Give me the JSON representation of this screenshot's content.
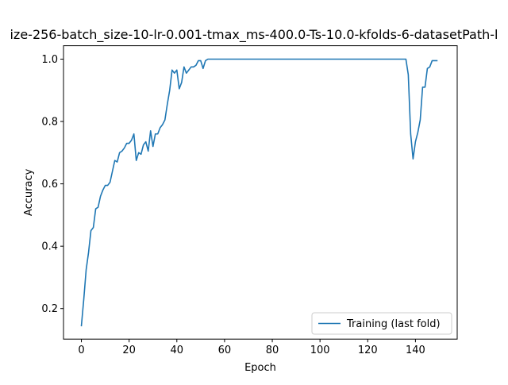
{
  "chart_data": {
    "type": "line",
    "title": "ize-256-batch_size-10-lr-0.001-tmax_ms-400.0-Ts-10.0-kfolds-6-datasetPath-l",
    "xlabel": "Epoch",
    "ylabel": "Accuracy",
    "xlim": [
      -7.5,
      157.5
    ],
    "ylim": [
      0.102,
      1.043
    ],
    "xticks": [
      0,
      20,
      40,
      60,
      80,
      100,
      120,
      140
    ],
    "yticks": [
      0.2,
      0.4,
      0.6,
      0.8,
      1.0
    ],
    "xtick_labels": [
      "0",
      "20",
      "40",
      "60",
      "80",
      "100",
      "120",
      "140"
    ],
    "ytick_labels": [
      "0.2",
      "0.4",
      "0.6",
      "0.8",
      "1.0"
    ],
    "grid": false,
    "legend_position": "lower-right",
    "series": [
      {
        "name": "Training (last fold)",
        "color": "#1f77b4",
        "x": [
          0,
          1,
          2,
          3,
          4,
          5,
          6,
          7,
          8,
          9,
          10,
          11,
          12,
          13,
          14,
          15,
          16,
          17,
          18,
          19,
          20,
          21,
          22,
          23,
          24,
          25,
          26,
          27,
          28,
          29,
          30,
          31,
          32,
          33,
          34,
          35,
          36,
          37,
          38,
          39,
          40,
          41,
          42,
          43,
          44,
          45,
          46,
          47,
          48,
          49,
          50,
          51,
          52,
          53,
          54,
          136,
          137,
          138,
          139,
          140,
          141,
          142,
          143,
          144,
          145,
          146,
          147,
          148,
          149
        ],
        "y": [
          0.145,
          0.23,
          0.325,
          0.38,
          0.45,
          0.46,
          0.52,
          0.525,
          0.56,
          0.58,
          0.595,
          0.595,
          0.605,
          0.64,
          0.675,
          0.67,
          0.7,
          0.705,
          0.715,
          0.73,
          0.73,
          0.74,
          0.76,
          0.675,
          0.7,
          0.695,
          0.725,
          0.735,
          0.705,
          0.77,
          0.72,
          0.76,
          0.76,
          0.78,
          0.79,
          0.805,
          0.855,
          0.9,
          0.965,
          0.955,
          0.965,
          0.905,
          0.925,
          0.975,
          0.955,
          0.965,
          0.975,
          0.975,
          0.98,
          0.995,
          0.995,
          0.97,
          0.995,
          1.0,
          1.0,
          1.0,
          0.95,
          0.76,
          0.68,
          0.735,
          0.765,
          0.805,
          0.91,
          0.91,
          0.97,
          0.975,
          0.995,
          0.995,
          0.995
        ]
      }
    ]
  }
}
